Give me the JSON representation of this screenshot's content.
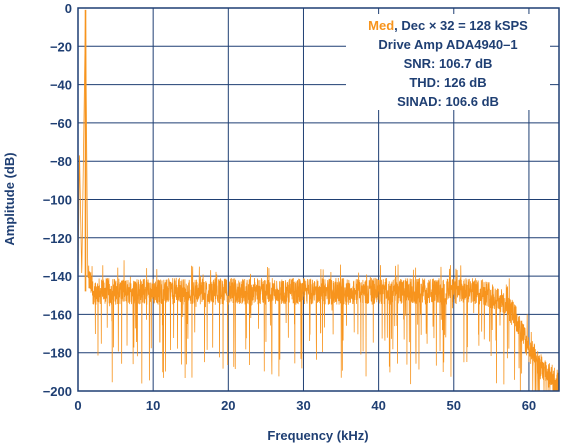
{
  "chart_data": {
    "type": "line",
    "title": "",
    "xlabel": "Frequency (kHz)",
    "ylabel": "Amplitude (dB)",
    "xlim": [
      0,
      64
    ],
    "ylim": [
      -200,
      0
    ],
    "xticks": [
      0,
      10,
      20,
      30,
      40,
      50,
      60
    ],
    "yticks": [
      0,
      -20,
      -40,
      -60,
      -80,
      -100,
      -120,
      -140,
      -160,
      -180,
      -200
    ],
    "xtick_labels": [
      "0",
      "10",
      "20",
      "30",
      "40",
      "50",
      "60"
    ],
    "ytick_labels": [
      "0",
      "−20",
      "−40",
      "−60",
      "−80",
      "−100",
      "−120",
      "−140",
      "−160",
      "−180",
      "−200"
    ],
    "grid": true,
    "series": [
      {
        "name": "Med",
        "color": "#f7941d",
        "description_points": {
          "x": [
            0.0,
            0.2,
            0.5,
            1.0,
            1.3,
            2.0,
            5,
            10,
            20,
            30,
            40,
            50,
            54,
            56,
            58,
            60,
            62,
            64
          ],
          "y": [
            -140,
            -76,
            -140,
            -1,
            -140,
            -148,
            -148,
            -148,
            -148,
            -148,
            -148,
            -148,
            -148,
            -152,
            -160,
            -178,
            -190,
            -196
          ]
        },
        "signal_peak": {
          "x": 1.0,
          "y": -1
        },
        "noise_floor_db": -148,
        "rolloff_start_khz": 55
      }
    ],
    "annotation": {
      "line1_highlight": "Med",
      "line1_rest": ", Dec × 32 = 128 kSPS",
      "line2": "Drive Amp ADA4940–1",
      "line3": "SNR: 106.7 dB",
      "line4": "THD: 126 dB",
      "line5": "SINAD: 106.6 dB"
    }
  },
  "colors": {
    "axis": "#1f3f73",
    "grid": "#1f3f73",
    "trace": "#f7941d"
  }
}
